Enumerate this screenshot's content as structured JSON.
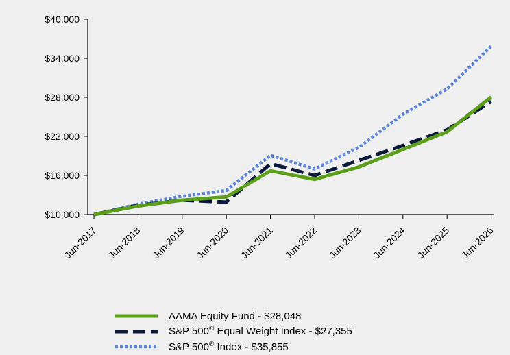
{
  "chart_data": {
    "type": "line",
    "categories": [
      "Jun-2017",
      "Jun-2018",
      "Jun-2019",
      "Jun-2020",
      "Jun-2021",
      "Jun-2022",
      "Jun-2023",
      "Jun-2024",
      "Jun-2025",
      "Jun-2026"
    ],
    "ylim": [
      10000,
      40000
    ],
    "yticks": [
      10000,
      16000,
      22000,
      28000,
      34000,
      40000
    ],
    "ytick_labels": [
      "$10,000",
      "$16,000",
      "$22,000",
      "$28,000",
      "$34,000",
      "$40,000"
    ],
    "grid": false,
    "legend_position": "bottom",
    "series": [
      {
        "name": "AAMA Equity Fund - $28,048",
        "label_pre": "AAMA Equity Fund - $28,048",
        "label_sup": "",
        "label_post": "",
        "color": "#5a9e1a",
        "style": "solid",
        "values": [
          10000,
          11300,
          12200,
          12700,
          16700,
          15400,
          17300,
          20000,
          22700,
          28048
        ]
      },
      {
        "name": "S&P 500® Equal Weight Index - $27,355",
        "label_pre": "S&P 500",
        "label_sup": "®",
        "label_post": " Equal Weight Index - $27,355",
        "color": "#0c1a3a",
        "style": "dashed",
        "values": [
          10000,
          11400,
          12200,
          11900,
          17800,
          16000,
          18300,
          20600,
          23000,
          27355
        ]
      },
      {
        "name": "S&P 500® Index - $35,855",
        "label_pre": "S&P 500",
        "label_sup": "®",
        "label_post": " Index - $35,855",
        "color": "#5b86d8",
        "style": "dotted",
        "values": [
          10000,
          11600,
          12800,
          13700,
          19100,
          17000,
          20300,
          25400,
          29300,
          35855
        ]
      }
    ]
  }
}
